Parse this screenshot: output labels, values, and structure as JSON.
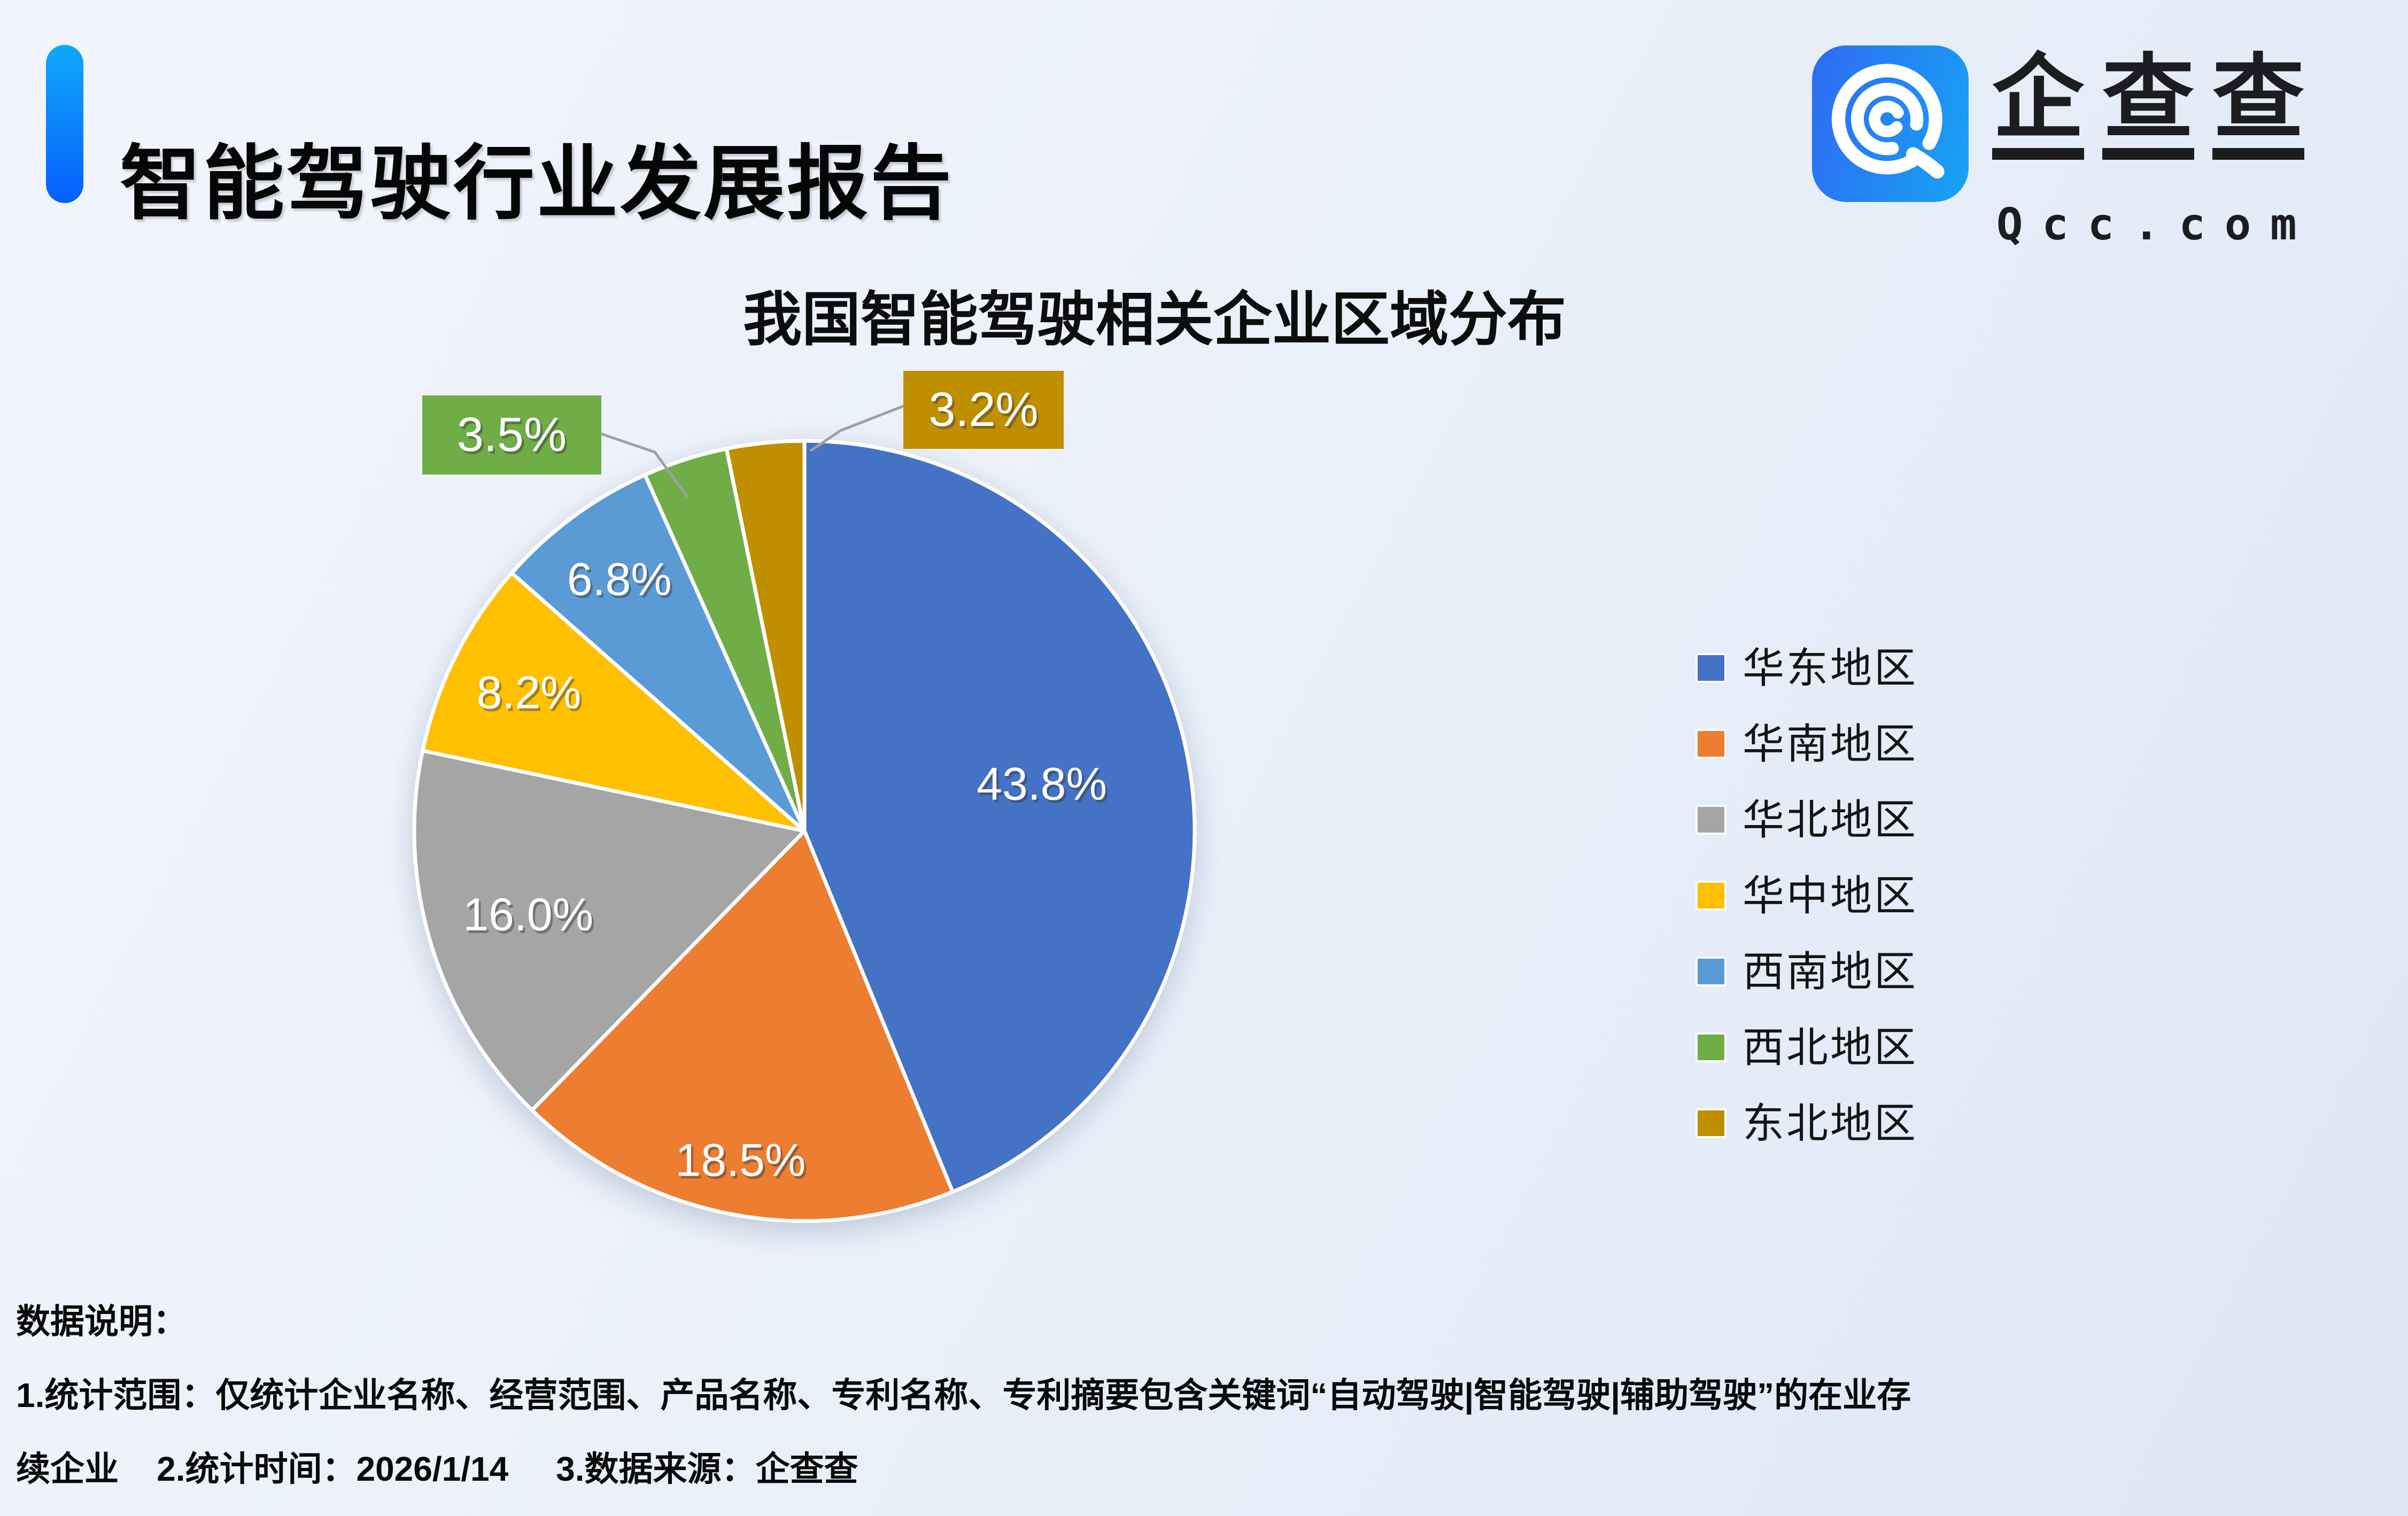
{
  "header": {
    "title": "智能驾驶行业发展报告",
    "accent_bar_colors": [
      "#0FA8F7",
      "#0560FE"
    ]
  },
  "logo": {
    "wordmark": "企查查",
    "domain": "Qcc.com",
    "icon": "qcc-swirl-magnifier-icon",
    "icon_gradient": [
      "#2E6BF2",
      "#17A3F4"
    ]
  },
  "chart_data": {
    "type": "pie",
    "title": "我国智能驾驶相关企业区域分布",
    "start_angle_deg": 0,
    "direction": "clockwise",
    "legend_position": "right",
    "slice_border_color": "#FFFFFF",
    "leader_line_color": "#A0A0A0",
    "series": [
      {
        "label": "华东地区",
        "value": 43.8,
        "display": "43.8%",
        "color": "#4472C4",
        "label_style": "inside"
      },
      {
        "label": "华南地区",
        "value": 18.5,
        "display": "18.5%",
        "color": "#ED7D31",
        "label_style": "inside"
      },
      {
        "label": "华北地区",
        "value": 16.0,
        "display": "16.0%",
        "color": "#A5A5A5",
        "label_style": "inside"
      },
      {
        "label": "华中地区",
        "value": 8.2,
        "display": "8.2%",
        "color": "#FFC000",
        "label_style": "inside"
      },
      {
        "label": "西南地区",
        "value": 6.8,
        "display": "6.8%",
        "color": "#5B9BD5",
        "label_style": "inside"
      },
      {
        "label": "西北地区",
        "value": 3.5,
        "display": "3.5%",
        "color": "#70AD47",
        "label_style": "callout-left"
      },
      {
        "label": "东北地区",
        "value": 3.2,
        "display": "3.2%",
        "color": "#BF8F00",
        "label_style": "callout-right"
      }
    ]
  },
  "footnote": {
    "heading": "数据说明：",
    "line1": "1.统计范围：仅统计企业名称、经营范围、产品名称、专利名称、专利摘要包含关键词“自动驾驶|智能驾驶|辅助驾驶”的在业存",
    "line2": "续企业    2.统计时间：2026/1/14     3.数据来源：企查查"
  }
}
